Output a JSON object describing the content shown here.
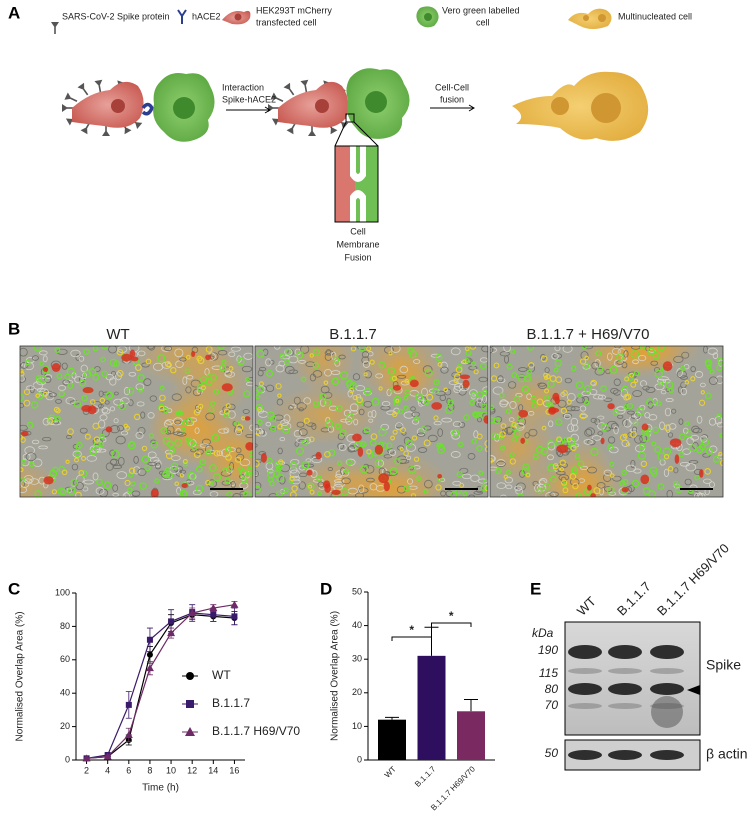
{
  "panel_a": {
    "label": "A",
    "legend": [
      [
        "SARS-CoV-2 Spike protein"
      ],
      [
        "hACE2"
      ],
      [
        "HEK293T mCherry",
        "transfected cell"
      ],
      [
        "Vero green labelled",
        "cell"
      ],
      [
        "Multinucleated cell"
      ]
    ],
    "arrow_1": [
      "Interaction",
      "Spike-hACE2"
    ],
    "arrow_2": [
      "Cell-Cell",
      "fusion"
    ],
    "inset": [
      "Cell",
      "Membrane",
      "Fusion"
    ]
  },
  "panel_b": {
    "label": "B",
    "titles": [
      "WT",
      "B.1.1.7",
      "B.1.1.7 + H69/V70"
    ]
  },
  "chart_data": [
    {
      "type": "line",
      "panel_label": "C",
      "x": [
        2,
        4,
        6,
        8,
        10,
        12,
        14,
        16
      ],
      "xlim": [
        1,
        17
      ],
      "xticks": [
        2,
        4,
        6,
        8,
        10,
        12,
        14,
        16
      ],
      "ylim": [
        0,
        100
      ],
      "yticks": [
        0,
        20,
        40,
        60,
        80,
        100
      ],
      "xlabel": "Time (h)",
      "ylabel": "Normalised Overlap Area (%)",
      "series": [
        {
          "name": "WT",
          "color": "#000000",
          "marker": "circle",
          "values": [
            1,
            2,
            12,
            63,
            82,
            87,
            86,
            85
          ],
          "errors": [
            0.5,
            1,
            3,
            5,
            5,
            3,
            3,
            4
          ]
        },
        {
          "name": "B.1.1.7",
          "color": "#3a1a6a",
          "marker": "square",
          "values": [
            1,
            3,
            33,
            72,
            83,
            88,
            87,
            86
          ],
          "errors": [
            0.5,
            1,
            8,
            7,
            7,
            5,
            4,
            5
          ]
        },
        {
          "name": "B.1.1.7 H69/V70",
          "color": "#6e2a66",
          "marker": "triangle",
          "values": [
            1,
            2,
            15,
            55,
            76,
            88,
            91,
            93
          ],
          "errors": [
            0.5,
            1,
            4,
            4,
            3,
            3,
            2,
            2
          ]
        }
      ]
    },
    {
      "type": "bar",
      "panel_label": "D",
      "categories": [
        "WT",
        "B.1.1.7",
        "B.1.1.7 H69/V70"
      ],
      "values": [
        12,
        31,
        14.5
      ],
      "errors": [
        0.7,
        8.5,
        3.5
      ],
      "colors": [
        "#000000",
        "#2e0e5e",
        "#7a2a60"
      ],
      "ylim": [
        0,
        50
      ],
      "yticks": [
        0,
        10,
        20,
        30,
        40,
        50
      ],
      "ylabel": "Normalised Overlap Area (%)",
      "annotations": [
        "*",
        "*"
      ]
    }
  ],
  "panel_e": {
    "label": "E",
    "lanes": [
      "WT",
      "B.1.1.7",
      "B.1.1.7 H69/V70"
    ],
    "unit": "kDa",
    "markers": [
      190,
      115,
      80,
      70,
      50
    ],
    "bands": [
      "Spike",
      "β actin"
    ]
  }
}
